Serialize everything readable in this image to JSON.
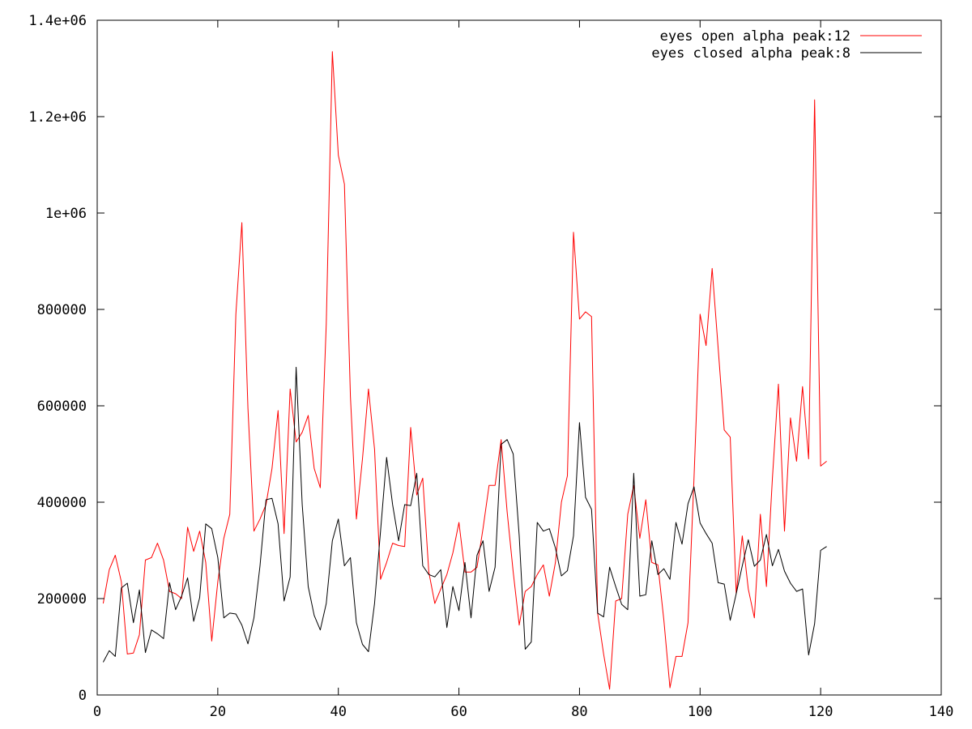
{
  "chart_data": {
    "type": "line",
    "title": "",
    "xlabel": "",
    "ylabel": "",
    "xlim": [
      0,
      140
    ],
    "ylim": [
      0,
      1400000
    ],
    "x_ticks": [
      0,
      20,
      40,
      60,
      80,
      100,
      120,
      140
    ],
    "x_tick_labels": [
      "0",
      "20",
      "40",
      "60",
      "80",
      "100",
      "120",
      "140"
    ],
    "y_ticks": [
      0,
      200000,
      400000,
      600000,
      800000,
      1000000,
      1200000,
      1400000
    ],
    "y_tick_labels": [
      "0",
      "200000",
      "400000",
      "600000",
      "800000",
      "1e+06",
      "1.2e+06",
      "1.4e+06"
    ],
    "grid": false,
    "legend_position": "top-right",
    "x": [
      1,
      2,
      3,
      4,
      5,
      6,
      7,
      8,
      9,
      10,
      11,
      12,
      13,
      14,
      15,
      16,
      17,
      18,
      19,
      20,
      21,
      22,
      23,
      24,
      25,
      26,
      27,
      28,
      29,
      30,
      31,
      32,
      33,
      34,
      35,
      36,
      37,
      38,
      39,
      40,
      41,
      42,
      43,
      44,
      45,
      46,
      47,
      48,
      49,
      50,
      51,
      52,
      53,
      54,
      55,
      56,
      57,
      58,
      59,
      60,
      61,
      62,
      63,
      64,
      65,
      66,
      67,
      68,
      69,
      70,
      71,
      72,
      73,
      74,
      75,
      76,
      77,
      78,
      79,
      80,
      81,
      82,
      83,
      84,
      85,
      86,
      87,
      88,
      89,
      90,
      91,
      92,
      93,
      94,
      95,
      96,
      97,
      98,
      99,
      100,
      101,
      102,
      103,
      104,
      105,
      106,
      107,
      108,
      109,
      110,
      111,
      112,
      113,
      114,
      115,
      116,
      117,
      118,
      119,
      120,
      121
    ],
    "series": [
      {
        "name": "eyes open alpha peak:12",
        "color": "#ff0000",
        "values": [
          190000,
          260000,
          290000,
          235000,
          85000,
          87000,
          125000,
          280000,
          285000,
          315000,
          280000,
          215000,
          210000,
          200000,
          348000,
          298000,
          340000,
          275000,
          112000,
          235000,
          325000,
          375000,
          790000,
          980000,
          595000,
          340000,
          365000,
          395000,
          470000,
          590000,
          335000,
          635000,
          525000,
          545000,
          580000,
          470000,
          430000,
          770000,
          1335000,
          1120000,
          1060000,
          620000,
          365000,
          490000,
          635000,
          510000,
          240000,
          275000,
          315000,
          310000,
          308000,
          555000,
          415000,
          450000,
          255000,
          190000,
          220000,
          250000,
          295000,
          358000,
          255000,
          255000,
          265000,
          345000,
          435000,
          435000,
          530000,
          380000,
          255000,
          145000,
          215000,
          225000,
          250000,
          270000,
          205000,
          275000,
          400000,
          455000,
          960000,
          780000,
          795000,
          785000,
          170000,
          85000,
          12000,
          195000,
          200000,
          375000,
          435000,
          325000,
          405000,
          275000,
          270000,
          155000,
          15000,
          80000,
          80000,
          150000,
          450000,
          790000,
          725000,
          885000,
          720000,
          550000,
          535000,
          210000,
          330000,
          220000,
          160000,
          375000,
          225000,
          450000,
          645000,
          340000,
          575000,
          485000,
          640000,
          490000,
          1235000,
          475000,
          485000
        ]
      },
      {
        "name": "eyes closed alpha peak:8",
        "color": "#000000",
        "values": [
          68000,
          92000,
          80000,
          222000,
          232000,
          150000,
          218000,
          88000,
          135000,
          127000,
          117000,
          233000,
          177000,
          205000,
          243000,
          153000,
          202000,
          355000,
          345000,
          285000,
          160000,
          170000,
          168000,
          145000,
          106000,
          160000,
          268000,
          405000,
          408000,
          355000,
          195000,
          245000,
          680000,
          395000,
          225000,
          165000,
          135000,
          190000,
          320000,
          365000,
          268000,
          285000,
          150000,
          105000,
          90000,
          190000,
          340000,
          493000,
          395000,
          320000,
          395000,
          393000,
          460000,
          268000,
          250000,
          245000,
          260000,
          140000,
          225000,
          175000,
          275000,
          160000,
          290000,
          320000,
          215000,
          265000,
          520000,
          530000,
          500000,
          330000,
          95000,
          110000,
          358000,
          340000,
          345000,
          305000,
          247000,
          258000,
          330000,
          565000,
          410000,
          385000,
          170000,
          162000,
          265000,
          225000,
          188000,
          177000,
          460000,
          205000,
          208000,
          320000,
          250000,
          262000,
          240000,
          358000,
          313000,
          397000,
          432000,
          357000,
          335000,
          315000,
          233000,
          230000,
          155000,
          210000,
          268000,
          322000,
          267000,
          280000,
          333000,
          268000,
          302000,
          257000,
          232000,
          215000,
          220000,
          83000,
          148000,
          300000,
          308000
        ]
      }
    ]
  }
}
